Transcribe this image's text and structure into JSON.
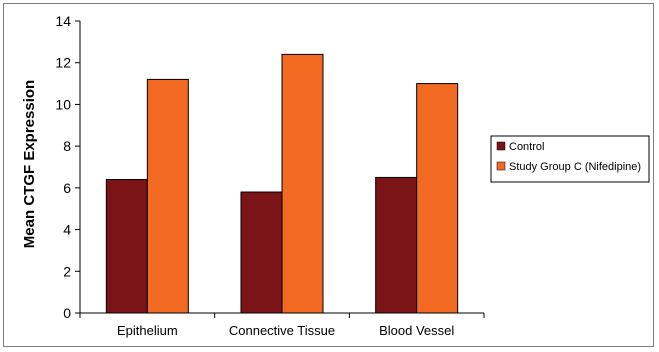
{
  "chart_data": {
    "type": "bar",
    "categories": [
      "Epithelium",
      "Connective Tissue",
      "Blood Vessel"
    ],
    "series": [
      {
        "name": "Control",
        "values": [
          6.4,
          5.8,
          6.5
        ],
        "color": "#7b1416"
      },
      {
        "name": "Study Group C (Nifedipine)",
        "values": [
          11.2,
          12.4,
          11.0
        ],
        "color": "#f26a22"
      }
    ],
    "ylabel": "Mean CTGF Expression",
    "xlabel": "",
    "ylim": [
      0,
      14
    ],
    "yticks": [
      0,
      2,
      4,
      6,
      8,
      10,
      12,
      14
    ],
    "grid": false,
    "legend": "right"
  }
}
